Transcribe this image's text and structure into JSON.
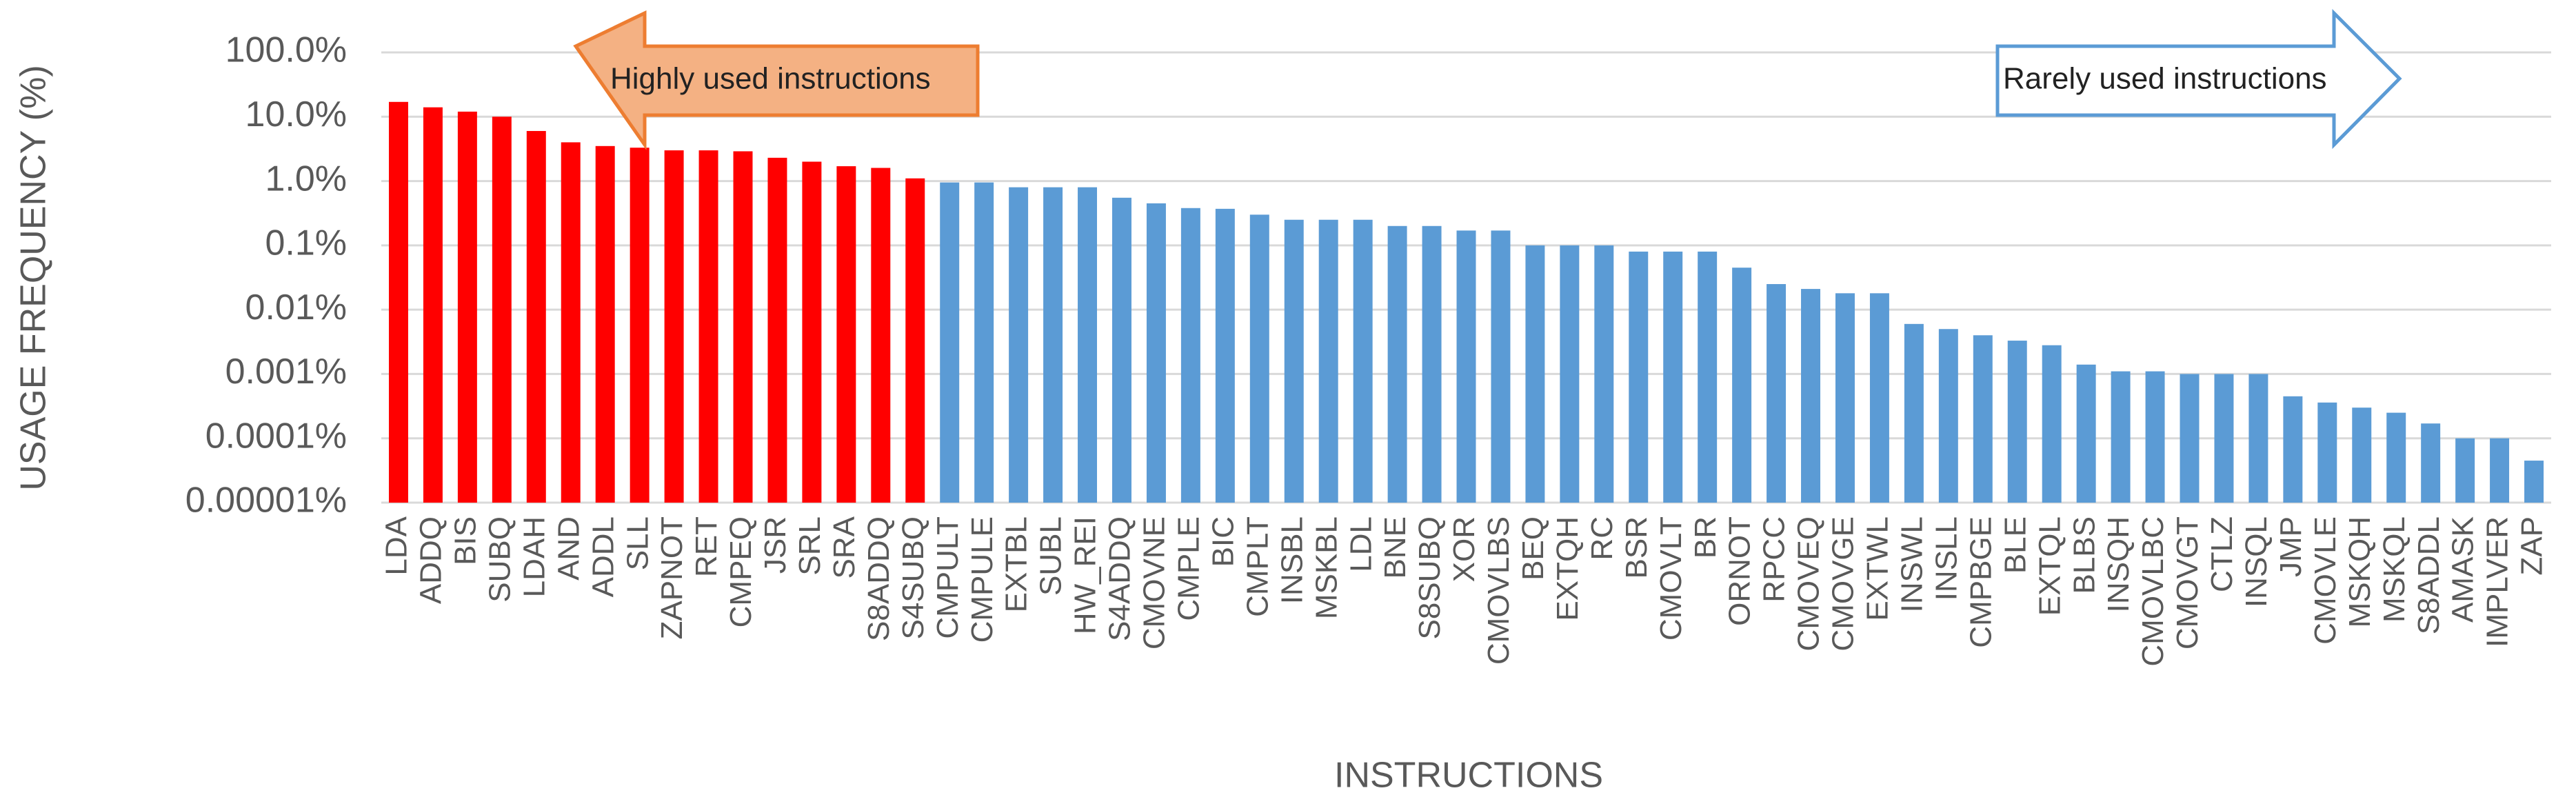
{
  "chart_data": {
    "type": "bar",
    "y_label": "USAGE FREQUENCY (%)",
    "x_label": "INSTRUCTIONS",
    "categories": [
      "LDA",
      "ADDQ",
      "BIS",
      "SUBQ",
      "LDAH",
      "AND",
      "ADDL",
      "SLL",
      "ZAPNOT",
      "RET",
      "CMPEQ",
      "JSR",
      "SRL",
      "SRA",
      "S8ADDQ",
      "S4SUBQ",
      "CMPULT",
      "CMPULE",
      "EXTBL",
      "SUBL",
      "HW_REI",
      "S4ADDQ",
      "CMOVNE",
      "CMPLE",
      "BIC",
      "CMPLT",
      "INSBL",
      "MSKBL",
      "LDL",
      "BNE",
      "S8SUBQ",
      "XOR",
      "CMOVLBS",
      "BEQ",
      "EXTQH",
      "RC",
      "BSR",
      "CMOVLT",
      "BR",
      "ORNOT",
      "RPCC",
      "CMOVEQ",
      "CMOVGE",
      "EXTWL",
      "INSWL",
      "INSLL",
      "CMPBGE",
      "BLE",
      "EXTQL",
      "BLBS",
      "INSQH",
      "CMOVLBC",
      "CMOVGT",
      "CTLZ",
      "INSQL",
      "JMP",
      "CMOVLE",
      "MSKQH",
      "MSKQL",
      "S8ADDL",
      "AMASK",
      "IMPLVER",
      "ZAP"
    ],
    "values": [
      17,
      14,
      12,
      10,
      6,
      4,
      3.5,
      3.3,
      3,
      3,
      2.9,
      2.3,
      2,
      1.7,
      1.6,
      1.1,
      0.95,
      0.95,
      0.8,
      0.8,
      0.8,
      0.55,
      0.45,
      0.38,
      0.37,
      0.3,
      0.25,
      0.25,
      0.25,
      0.2,
      0.2,
      0.17,
      0.17,
      0.1,
      0.1,
      0.1,
      0.08,
      0.08,
      0.08,
      0.045,
      0.025,
      0.021,
      0.018,
      0.018,
      0.006,
      0.005,
      0.004,
      0.0033,
      0.0028,
      0.0014,
      0.0011,
      0.0011,
      0.001,
      0.001,
      0.001,
      0.00045,
      0.00036,
      0.0003,
      0.00025,
      0.00017,
      0.0001,
      0.0001,
      4.5e-05
    ],
    "colors": [
      "#ff0000",
      "#ff0000",
      "#ff0000",
      "#ff0000",
      "#ff0000",
      "#ff0000",
      "#ff0000",
      "#ff0000",
      "#ff0000",
      "#ff0000",
      "#ff0000",
      "#ff0000",
      "#ff0000",
      "#ff0000",
      "#ff0000",
      "#ff0000",
      "#5b9bd5",
      "#5b9bd5",
      "#5b9bd5",
      "#5b9bd5",
      "#5b9bd5",
      "#5b9bd5",
      "#5b9bd5",
      "#5b9bd5",
      "#5b9bd5",
      "#5b9bd5",
      "#5b9bd5",
      "#5b9bd5",
      "#5b9bd5",
      "#5b9bd5",
      "#5b9bd5",
      "#5b9bd5",
      "#5b9bd5",
      "#5b9bd5",
      "#5b9bd5",
      "#5b9bd5",
      "#5b9bd5",
      "#5b9bd5",
      "#5b9bd5",
      "#5b9bd5",
      "#5b9bd5",
      "#5b9bd5",
      "#5b9bd5",
      "#5b9bd5",
      "#5b9bd5",
      "#5b9bd5",
      "#5b9bd5",
      "#5b9bd5",
      "#5b9bd5",
      "#5b9bd5",
      "#5b9bd5",
      "#5b9bd5",
      "#5b9bd5",
      "#5b9bd5",
      "#5b9bd5",
      "#5b9bd5",
      "#5b9bd5",
      "#5b9bd5",
      "#5b9bd5",
      "#5b9bd5",
      "#5b9bd5",
      "#5b9bd5",
      "#5b9bd5"
    ],
    "ylim": [
      1e-05,
      100
    ],
    "y_log_scale": true,
    "yticks": [
      {
        "value": 100,
        "label": "100.0%"
      },
      {
        "value": 10,
        "label": "10.0%"
      },
      {
        "value": 1,
        "label": "1.0%"
      },
      {
        "value": 0.1,
        "label": "0.1%"
      },
      {
        "value": 0.01,
        "label": "0.01%"
      },
      {
        "value": 0.001,
        "label": "0.001%"
      },
      {
        "value": 0.0001,
        "label": "0.0001%"
      },
      {
        "value": 1e-05,
        "label": "0.00001%"
      }
    ],
    "grid": true,
    "annotations": [
      "Highly used instructions",
      "Rarely used instructions"
    ]
  }
}
